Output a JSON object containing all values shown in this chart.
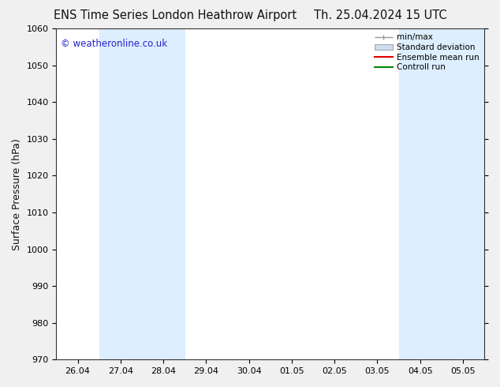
{
  "title_left": "ENS Time Series London Heathrow Airport",
  "title_right": "Th. 25.04.2024 15 UTC",
  "ylabel": "Surface Pressure (hPa)",
  "ylim": [
    970,
    1060
  ],
  "yticks": [
    970,
    980,
    990,
    1000,
    1010,
    1020,
    1030,
    1040,
    1050,
    1060
  ],
  "x_tick_labels": [
    "26.04",
    "27.04",
    "28.04",
    "29.04",
    "30.04",
    "01.05",
    "02.05",
    "03.05",
    "04.05",
    "05.05"
  ],
  "x_tick_positions": [
    0,
    1,
    2,
    3,
    4,
    5,
    6,
    7,
    8,
    9
  ],
  "shaded_bands": [
    {
      "xmin": 1.0,
      "xmax": 3.0
    },
    {
      "xmin": 8.0,
      "xmax": 10.0
    }
  ],
  "shade_color": "#ddeeff",
  "bg_color": "#f0f0f0",
  "plot_bg_color": "#ffffff",
  "watermark": "© weatheronline.co.uk",
  "watermark_color": "#2222cc",
  "legend_items": [
    {
      "label": "min/max",
      "color": "#999999",
      "style": "minmax"
    },
    {
      "label": "Standard deviation",
      "color": "#ccddee",
      "style": "stddev"
    },
    {
      "label": "Ensemble mean run",
      "color": "#dd0000",
      "style": "line"
    },
    {
      "label": "Controll run",
      "color": "#008800",
      "style": "line"
    }
  ],
  "title_color": "#111111",
  "font_family": "DejaVu Sans",
  "title_fontsize": 10.5,
  "axis_fontsize": 9,
  "tick_fontsize": 8,
  "legend_fontsize": 7.5
}
